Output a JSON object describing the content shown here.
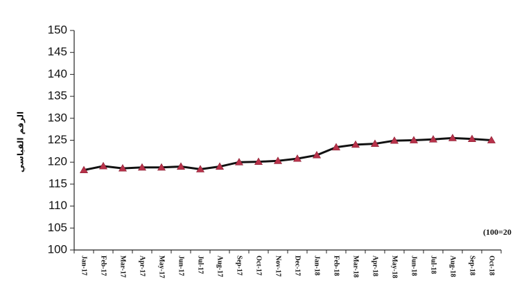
{
  "chart_data": {
    "type": "line",
    "title": "",
    "xlabel": "",
    "ylabel": "الرقم القياسي",
    "note": "(100=20",
    "ylim": [
      100,
      150
    ],
    "ytick_step": 5,
    "grid": false,
    "categories": [
      "Jan-17",
      "Feb-17",
      "Mar-17",
      "Apr-17",
      "May-17",
      "Jun-17",
      "Jul-17",
      "Aug-17",
      "Sep-17",
      "Oct-17",
      "Nov-17",
      "Dec-17",
      "Jan-18",
      "Feb-18",
      "Mar-18",
      "Apr-18",
      "May-18",
      "Jun-18",
      "Jul-18",
      "Aug-18",
      "Sep-18",
      "Oct-18"
    ],
    "series": [
      {
        "values": [
          118.2,
          119.1,
          118.6,
          118.8,
          118.8,
          119.0,
          118.4,
          119.0,
          120.0,
          120.1,
          120.3,
          120.8,
          121.6,
          123.4,
          124.0,
          124.2,
          124.9,
          125.0,
          125.2,
          125.5,
          125.3,
          125.0
        ],
        "line_color": "#111111",
        "marker": "triangle",
        "marker_color": "#b8324a"
      }
    ]
  }
}
